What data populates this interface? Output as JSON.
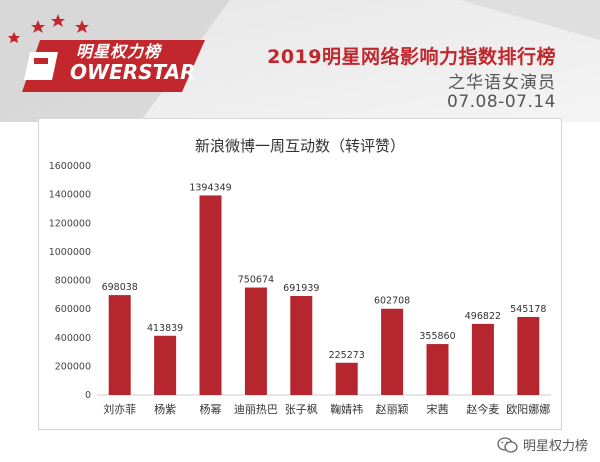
{
  "logo": {
    "cn": "明星权力榜",
    "en": "OWERSTAR"
  },
  "header": {
    "title": "2019明星网络影响力指数排行榜",
    "subtitle": "之华语女演员",
    "date_range": "07.08-07.14"
  },
  "footer": {
    "account": "明星权力榜",
    "icon": "wechat-icon"
  },
  "colors": {
    "bar": "#b5262e",
    "accent": "#c1272d",
    "banner": "#dcdcdc"
  },
  "chart_data": {
    "type": "bar",
    "title": "新浪微博一周互动数（转评赞）",
    "categories": [
      "刘亦菲",
      "杨紫",
      "杨幂",
      "迪丽热巴",
      "张子枫",
      "鞠婧祎",
      "赵丽颖",
      "宋茜",
      "赵今麦",
      "欧阳娜娜"
    ],
    "values": [
      698038,
      413839,
      1394349,
      750674,
      691939,
      225273,
      602708,
      355860,
      496822,
      545178
    ],
    "ylim": [
      0,
      1600000
    ],
    "yticks": [
      0,
      200000,
      400000,
      600000,
      800000,
      1000000,
      1200000,
      1400000,
      1600000
    ],
    "grid": false,
    "legend": false,
    "data_labels": true,
    "xlabel": "",
    "ylabel": ""
  }
}
